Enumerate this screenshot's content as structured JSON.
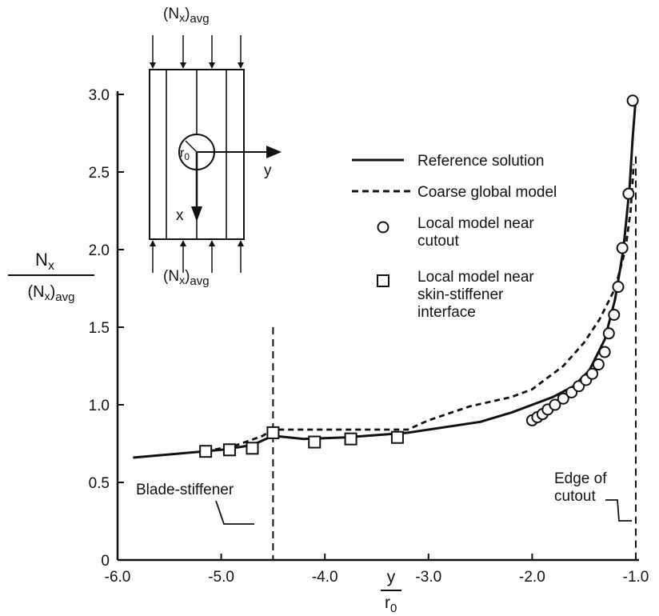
{
  "chart_data": {
    "type": "line",
    "xlabel": {
      "num": "y",
      "den": "r0"
    },
    "ylabel": {
      "num": "Nx",
      "den": "(Nx)avg"
    },
    "xlim": [
      -6.0,
      -1.0
    ],
    "ylim": [
      0,
      3.0
    ],
    "x_ticks": [
      "-6.0",
      "-5.0",
      "-4.0",
      "-3.0",
      "-2.0",
      "-1.0"
    ],
    "y_ticks": [
      "0",
      "0.5",
      "1.0",
      "1.5",
      "2.0",
      "2.5",
      "3.0"
    ],
    "grid": false,
    "legend_position": "right",
    "series": [
      {
        "name": "Reference solution",
        "style": "solid",
        "x": [
          -5.85,
          -5.0,
          -4.7,
          -4.5,
          -4.2,
          -3.8,
          -3.2,
          -2.5,
          -2.2,
          -2.0,
          -1.8,
          -1.6,
          -1.45,
          -1.3,
          -1.2,
          -1.12,
          -1.06,
          -1.03,
          -1.0
        ],
        "y": [
          0.66,
          0.71,
          0.74,
          0.8,
          0.78,
          0.79,
          0.82,
          0.89,
          0.95,
          1.0,
          1.05,
          1.12,
          1.22,
          1.42,
          1.68,
          2.0,
          2.4,
          2.72,
          2.98
        ]
      },
      {
        "name": "Coarse global model",
        "style": "dashed",
        "x": [
          -5.15,
          -4.85,
          -4.6,
          -4.5,
          -4.2,
          -3.6,
          -3.2,
          -3.0,
          -2.6,
          -2.2,
          -2.0,
          -1.7,
          -1.5,
          -1.35,
          -1.2,
          -1.1,
          -1.05,
          -1.02
        ],
        "y": [
          0.7,
          0.74,
          0.8,
          0.84,
          0.84,
          0.84,
          0.84,
          0.9,
          0.99,
          1.05,
          1.1,
          1.25,
          1.4,
          1.55,
          1.75,
          2.0,
          2.25,
          2.55
        ]
      },
      {
        "name": "Local model near cutout",
        "style": "circle",
        "x": [
          -2.0,
          -1.95,
          -1.9,
          -1.85,
          -1.78,
          -1.7,
          -1.62,
          -1.55,
          -1.48,
          -1.42,
          -1.36,
          -1.3,
          -1.26,
          -1.21,
          -1.17,
          -1.13,
          -1.07,
          -1.03
        ],
        "y": [
          0.9,
          0.92,
          0.94,
          0.97,
          1.0,
          1.04,
          1.08,
          1.12,
          1.16,
          1.2,
          1.26,
          1.34,
          1.46,
          1.58,
          1.76,
          2.01,
          2.36,
          2.96
        ]
      },
      {
        "name": "Local model near skin-stiffener interface",
        "style": "square",
        "x": [
          -5.15,
          -4.92,
          -4.7,
          -4.5,
          -4.1,
          -3.75,
          -3.3
        ],
        "y": [
          0.7,
          0.71,
          0.72,
          0.82,
          0.76,
          0.78,
          0.79
        ]
      }
    ],
    "reference_lines_x": [
      -4.5,
      -1.0
    ],
    "annotations": [
      {
        "text": "Blade-stiffener",
        "x": -5.2,
        "y": 0.45
      },
      {
        "text": "Edge of cutout",
        "x": -1.5,
        "y": 0.55
      }
    ]
  },
  "legend": {
    "items": [
      {
        "lines": [
          "Reference solution"
        ]
      },
      {
        "lines": [
          "Coarse global model"
        ]
      },
      {
        "lines": [
          "Local model near",
          "cutout"
        ]
      },
      {
        "lines": [
          "Local model near",
          "skin-stiffener",
          "interface"
        ]
      }
    ]
  },
  "inset": {
    "top_label": "(Nx)avg",
    "bottom_label": "(Nx)avg",
    "radius_label": "r0",
    "x_axis_label": "x",
    "y_axis_label": "y"
  },
  "colors": {
    "ink": "#111111",
    "background": "#ffffff"
  }
}
